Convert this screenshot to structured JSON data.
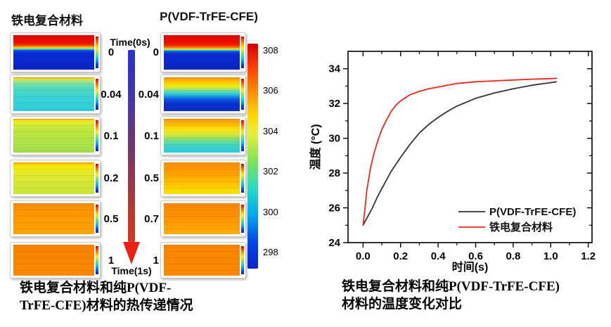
{
  "figure_left": {
    "column1_title": "铁电复合材料",
    "column2_title": "P(VDF-TrFE-CFE)",
    "time_arrow": {
      "top_label": "Time(0s)",
      "bottom_label": "Time(1s)"
    },
    "column1_times": [
      "0",
      "0.04",
      "0.1",
      "0.2",
      "0.5",
      "1"
    ],
    "column2_times": [
      "0",
      "0.04",
      "0.1",
      "0.5",
      "0.7",
      "1"
    ],
    "colorbar": {
      "tick_labels": [
        "308",
        "306",
        "304",
        "302",
        "300",
        "298"
      ],
      "top_color": "#d40000",
      "bottom_color": "#0b24c8"
    },
    "caption": {
      "line1": "铁电复合材料和纯P(VDF-",
      "line2": "TrFE-CFE)材料的热传递情况"
    }
  },
  "figure_right": {
    "caption": {
      "line1": "铁电复合材料和纯P(VDF-TrFE-CFE)",
      "line2": "材料的温度变化对比"
    }
  },
  "chart_data": {
    "type": "line",
    "title": "",
    "xlabel": "时间(s)",
    "ylabel": "温度 (°C)",
    "xlim": [
      -0.08,
      1.22
    ],
    "ylim": [
      24,
      35
    ],
    "xticks": [
      "0.0",
      "0.2",
      "0.4",
      "0.6",
      "0.8",
      "1.0",
      "1.2"
    ],
    "yticks": [
      "24",
      "26",
      "28",
      "30",
      "32",
      "34"
    ],
    "xticks_minor": [
      0.1,
      0.3,
      0.5,
      0.7,
      0.9,
      1.1
    ],
    "yticks_minor": [
      25,
      27,
      29,
      31,
      33
    ],
    "grid": false,
    "legend_position": "inside-lower-right",
    "series": [
      {
        "name": "P(VDF-TrFE-CFE)",
        "color": "#333333",
        "x": [
          0,
          0.01,
          0.025,
          0.05,
          0.075,
          0.1,
          0.15,
          0.2,
          0.25,
          0.3,
          0.35,
          0.4,
          0.45,
          0.5,
          0.6,
          0.7,
          0.8,
          0.9,
          1.0,
          1.03
        ],
        "y": [
          25.0,
          25.2,
          25.5,
          26.0,
          26.6,
          27.1,
          28.1,
          28.9,
          29.65,
          30.3,
          30.8,
          31.2,
          31.55,
          31.85,
          32.3,
          32.6,
          32.85,
          33.05,
          33.2,
          33.25
        ]
      },
      {
        "name": "铁电复合材料",
        "color": "#e8291c",
        "x": [
          0,
          0.01,
          0.02,
          0.04,
          0.06,
          0.08,
          0.1,
          0.125,
          0.15,
          0.175,
          0.2,
          0.25,
          0.3,
          0.35,
          0.4,
          0.5,
          0.6,
          0.7,
          0.8,
          0.9,
          1.0,
          1.03
        ],
        "y": [
          25.0,
          25.9,
          27.0,
          28.3,
          29.2,
          29.9,
          30.5,
          31.05,
          31.55,
          31.9,
          32.15,
          32.5,
          32.7,
          32.85,
          32.95,
          33.15,
          33.25,
          33.3,
          33.35,
          33.4,
          33.43,
          33.45
        ]
      }
    ]
  }
}
